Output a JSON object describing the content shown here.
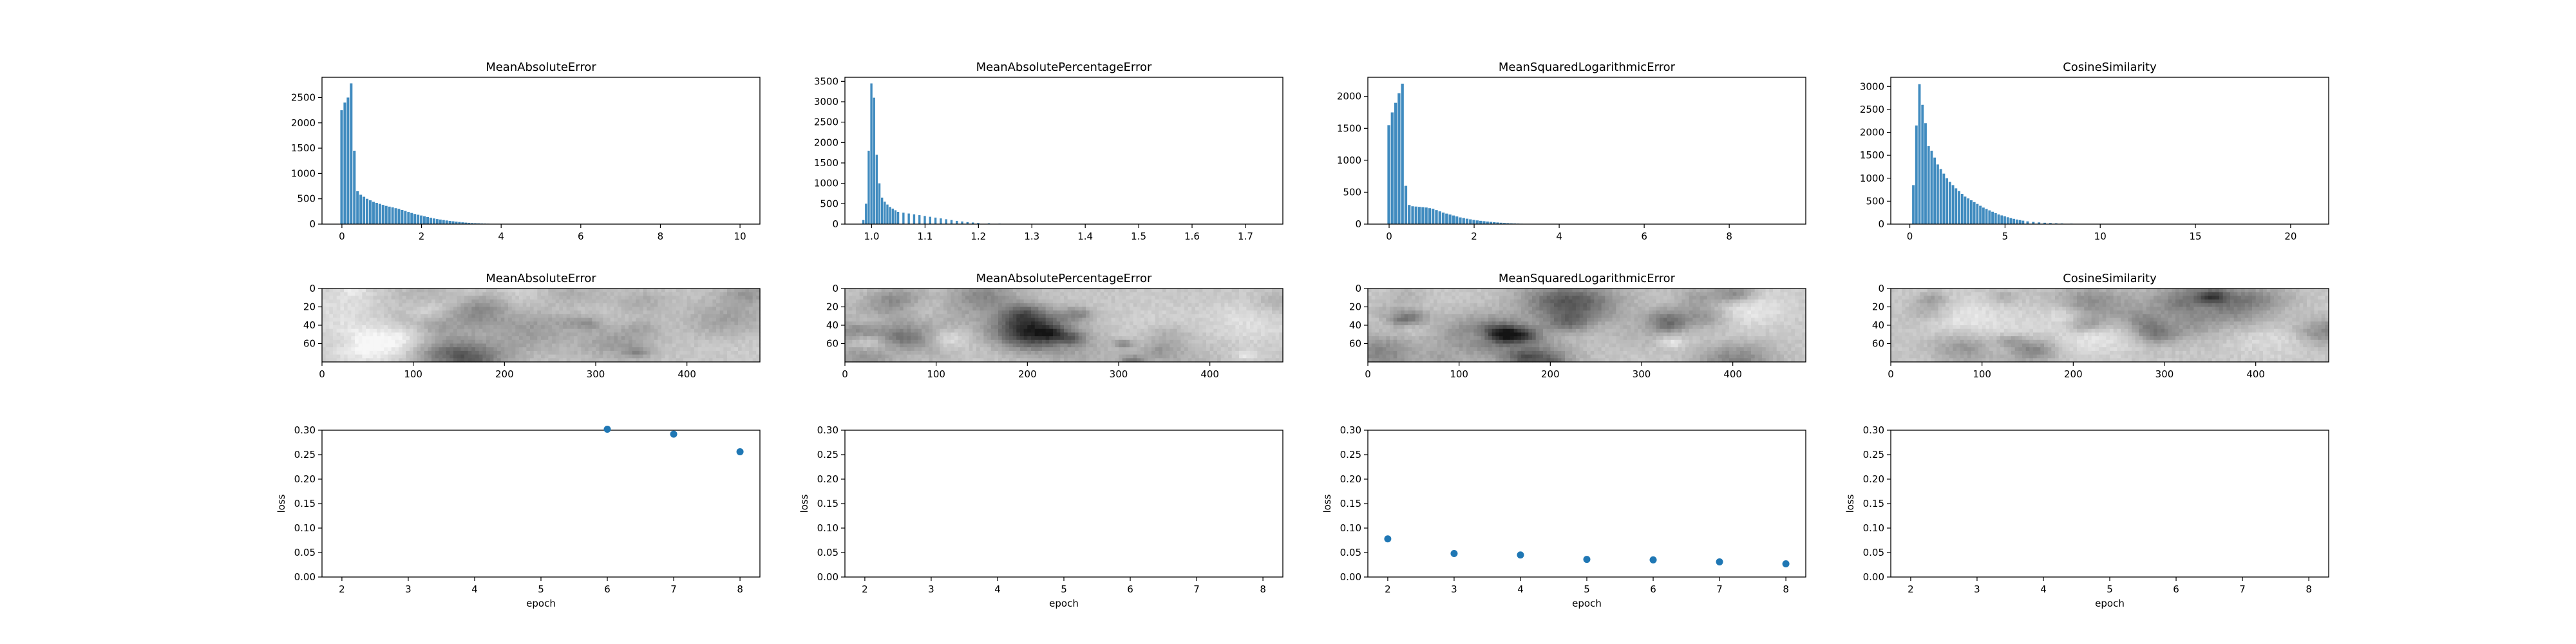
{
  "colors": {
    "bar": "#1f77b4",
    "point": "#1f77b4",
    "frame": "#000000"
  },
  "chart_data": [
    {
      "type": "bar",
      "title": "MeanAbsoluteError",
      "xlim": [
        -0.5,
        10.5
      ],
      "ylim": [
        0,
        2900
      ],
      "xticks": [
        0,
        2,
        4,
        6,
        8,
        10
      ],
      "yticks": [
        0,
        500,
        1000,
        1500,
        2000,
        2500
      ],
      "bin_width": 0.08,
      "x": [
        0.0,
        0.08,
        0.16,
        0.24,
        0.32,
        0.4,
        0.48,
        0.56,
        0.64,
        0.72,
        0.8,
        0.88,
        0.96,
        1.04,
        1.12,
        1.2,
        1.28,
        1.36,
        1.44,
        1.52,
        1.6,
        1.68,
        1.76,
        1.84,
        1.92,
        2.0,
        2.08,
        2.16,
        2.24,
        2.32,
        2.4,
        2.48,
        2.56,
        2.64,
        2.72,
        2.8,
        2.88,
        2.96,
        3.04,
        3.12,
        3.2,
        3.28,
        3.36,
        3.44,
        3.52,
        3.6,
        3.68,
        3.76,
        3.84,
        3.92,
        4.0,
        4.1,
        4.2,
        4.3
      ],
      "values": [
        2250,
        2400,
        2500,
        2780,
        1450,
        650,
        580,
        540,
        500,
        470,
        440,
        420,
        400,
        380,
        360,
        345,
        330,
        315,
        300,
        280,
        260,
        240,
        220,
        200,
        185,
        170,
        155,
        140,
        125,
        112,
        100,
        90,
        80,
        72,
        64,
        56,
        48,
        42,
        36,
        30,
        26,
        22,
        18,
        15,
        12,
        10,
        8,
        6,
        5,
        4,
        3,
        2,
        2,
        1
      ]
    },
    {
      "type": "bar",
      "title": "MeanAbsolutePercentageError",
      "xlim": [
        0.95,
        1.77
      ],
      "ylim": [
        0,
        3600
      ],
      "xticks": [
        1.0,
        1.1,
        1.2,
        1.3,
        1.4,
        1.5,
        1.6,
        1.7
      ],
      "yticks": [
        0,
        500,
        1000,
        1500,
        2000,
        2500,
        3000,
        3500
      ],
      "bin_width": 0.005,
      "x": [
        0.985,
        0.99,
        0.995,
        1.0,
        1.005,
        1.01,
        1.015,
        1.02,
        1.025,
        1.03,
        1.035,
        1.04,
        1.045,
        1.05,
        1.06,
        1.07,
        1.08,
        1.09,
        1.1,
        1.11,
        1.12,
        1.13,
        1.14,
        1.15,
        1.16,
        1.17,
        1.18,
        1.19,
        1.2,
        1.22,
        1.24,
        1.26,
        1.28,
        1.3
      ],
      "values": [
        100,
        500,
        1800,
        3450,
        3100,
        1700,
        1000,
        650,
        550,
        480,
        420,
        380,
        340,
        300,
        280,
        260,
        240,
        220,
        200,
        180,
        160,
        140,
        120,
        100,
        80,
        65,
        50,
        40,
        30,
        20,
        12,
        8,
        5,
        3
      ]
    },
    {
      "type": "bar",
      "title": "MeanSquaredLogarithmicError",
      "xlim": [
        -0.5,
        9.8
      ],
      "ylim": [
        0,
        2300
      ],
      "xticks": [
        0,
        2,
        4,
        6,
        8
      ],
      "yticks": [
        0,
        500,
        1000,
        1500,
        2000
      ],
      "bin_width": 0.08,
      "x": [
        0.0,
        0.08,
        0.16,
        0.24,
        0.32,
        0.4,
        0.48,
        0.56,
        0.64,
        0.72,
        0.8,
        0.88,
        0.96,
        1.04,
        1.12,
        1.2,
        1.28,
        1.36,
        1.44,
        1.52,
        1.6,
        1.68,
        1.76,
        1.84,
        1.92,
        2.0,
        2.08,
        2.16,
        2.24,
        2.32,
        2.4,
        2.48,
        2.56,
        2.64,
        2.72,
        2.8,
        2.88,
        2.96,
        3.04,
        3.12,
        3.2,
        3.3,
        3.4,
        3.5,
        3.6,
        3.8,
        4.0
      ],
      "values": [
        1550,
        1750,
        1900,
        2050,
        2200,
        600,
        300,
        280,
        275,
        270,
        265,
        260,
        250,
        240,
        220,
        200,
        180,
        165,
        150,
        135,
        120,
        105,
        95,
        85,
        75,
        65,
        58,
        52,
        46,
        40,
        35,
        30,
        26,
        22,
        18,
        15,
        12,
        10,
        8,
        6,
        5,
        4,
        3,
        2,
        2,
        1,
        1
      ]
    },
    {
      "type": "bar",
      "title": "CosineSimilarity",
      "xlim": [
        -1,
        22
      ],
      "ylim": [
        0,
        3200
      ],
      "xticks": [
        0,
        5,
        10,
        15,
        20
      ],
      "yticks": [
        0,
        500,
        1000,
        1500,
        2000,
        2500,
        3000
      ],
      "bin_width": 0.16,
      "x": [
        0.2,
        0.36,
        0.52,
        0.68,
        0.84,
        1.0,
        1.16,
        1.32,
        1.48,
        1.64,
        1.8,
        1.96,
        2.12,
        2.28,
        2.44,
        2.6,
        2.76,
        2.92,
        3.08,
        3.24,
        3.4,
        3.56,
        3.72,
        3.88,
        4.04,
        4.2,
        4.36,
        4.52,
        4.68,
        4.84,
        5.0,
        5.16,
        5.32,
        5.48,
        5.64,
        5.8,
        5.96,
        6.2,
        6.5,
        6.8,
        7.1,
        7.4,
        7.7,
        8.0,
        8.5,
        9.0,
        9.5,
        10.0,
        11.0,
        12.0
      ],
      "values": [
        850,
        2150,
        3050,
        2600,
        2200,
        1700,
        1600,
        1450,
        1300,
        1200,
        1100,
        1000,
        920,
        850,
        780,
        720,
        660,
        600,
        560,
        520,
        480,
        440,
        400,
        360,
        330,
        300,
        270,
        240,
        210,
        190,
        170,
        150,
        130,
        115,
        100,
        88,
        76,
        60,
        48,
        38,
        30,
        24,
        18,
        14,
        10,
        7,
        5,
        3,
        2,
        1
      ]
    },
    {
      "type": "heatmap",
      "title": "MeanAbsoluteError",
      "xlim": [
        0,
        480
      ],
      "ylim": [
        80,
        0
      ],
      "xticks": [
        0,
        100,
        200,
        300,
        400
      ],
      "yticks": [
        0,
        20,
        40,
        60
      ],
      "seed": 11
    },
    {
      "type": "heatmap",
      "title": "MeanAbsolutePercentageError",
      "xlim": [
        0,
        480
      ],
      "ylim": [
        80,
        0
      ],
      "xticks": [
        0,
        100,
        200,
        300,
        400
      ],
      "yticks": [
        0,
        20,
        40,
        60
      ],
      "seed": 23
    },
    {
      "type": "heatmap",
      "title": "MeanSquaredLogarithmicError",
      "xlim": [
        0,
        480
      ],
      "ylim": [
        80,
        0
      ],
      "xticks": [
        0,
        100,
        200,
        300,
        400
      ],
      "yticks": [
        0,
        20,
        40,
        60
      ],
      "seed": 37
    },
    {
      "type": "heatmap",
      "title": "CosineSimilarity",
      "xlim": [
        0,
        480
      ],
      "ylim": [
        80,
        0
      ],
      "xticks": [
        0,
        100,
        200,
        300,
        400
      ],
      "yticks": [
        0,
        20,
        40,
        60
      ],
      "seed": 53
    },
    {
      "type": "scatter",
      "xlabel": "epoch",
      "ylabel": "loss",
      "xlim": [
        1.7,
        8.3
      ],
      "ylim": [
        0,
        0.3
      ],
      "xticks": [
        2,
        3,
        4,
        5,
        6,
        7,
        8
      ],
      "yticks": [
        0.0,
        0.05,
        0.1,
        0.15,
        0.2,
        0.25,
        0.3
      ],
      "x": [
        6,
        7,
        8
      ],
      "y": [
        0.302,
        0.292,
        0.256
      ]
    },
    {
      "type": "scatter",
      "xlabel": "epoch",
      "ylabel": "loss",
      "xlim": [
        1.7,
        8.3
      ],
      "ylim": [
        0,
        0.3
      ],
      "xticks": [
        2,
        3,
        4,
        5,
        6,
        7,
        8
      ],
      "yticks": [
        0.0,
        0.05,
        0.1,
        0.15,
        0.2,
        0.25,
        0.3
      ],
      "x": [],
      "y": []
    },
    {
      "type": "scatter",
      "xlabel": "epoch",
      "ylabel": "loss",
      "xlim": [
        1.7,
        8.3
      ],
      "ylim": [
        0,
        0.3
      ],
      "xticks": [
        2,
        3,
        4,
        5,
        6,
        7,
        8
      ],
      "yticks": [
        0.0,
        0.05,
        0.1,
        0.15,
        0.2,
        0.25,
        0.3
      ],
      "x": [
        2,
        3,
        4,
        5,
        6,
        7,
        8
      ],
      "y": [
        0.078,
        0.048,
        0.045,
        0.036,
        0.035,
        0.031,
        0.027
      ]
    },
    {
      "type": "scatter",
      "xlabel": "epoch",
      "ylabel": "loss",
      "xlim": [
        1.7,
        8.3
      ],
      "ylim": [
        0,
        0.3
      ],
      "xticks": [
        2,
        3,
        4,
        5,
        6,
        7,
        8
      ],
      "yticks": [
        0.0,
        0.05,
        0.1,
        0.15,
        0.2,
        0.25,
        0.3
      ],
      "x": [],
      "y": []
    }
  ]
}
